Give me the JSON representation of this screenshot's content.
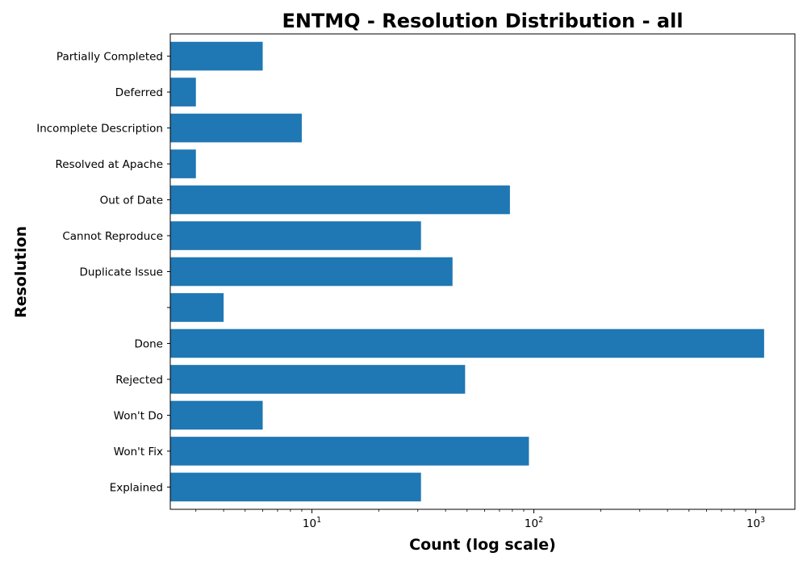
{
  "chart_data": {
    "type": "bar",
    "orientation": "horizontal",
    "title": "ENTMQ - Resolution Distribution - all",
    "xlabel": "Count (log scale)",
    "ylabel": "Resolution",
    "xscale": "log",
    "xlim": [
      2.3,
      1500
    ],
    "x_ticks": [
      10,
      100,
      1000
    ],
    "categories": [
      "Partially Completed",
      "Deferred",
      "Incomplete Description",
      "Resolved at Apache",
      "Out of Date",
      "Cannot Reproduce",
      "Duplicate Issue",
      "",
      "Done",
      "Rejected",
      "Won't Do",
      "Won't Fix",
      "Explained"
    ],
    "values": [
      6,
      3,
      9,
      3,
      78,
      31,
      43,
      4,
      1090,
      49,
      6,
      95,
      31
    ],
    "bar_color": "#1f77b4",
    "grid": false,
    "legend": "none"
  }
}
